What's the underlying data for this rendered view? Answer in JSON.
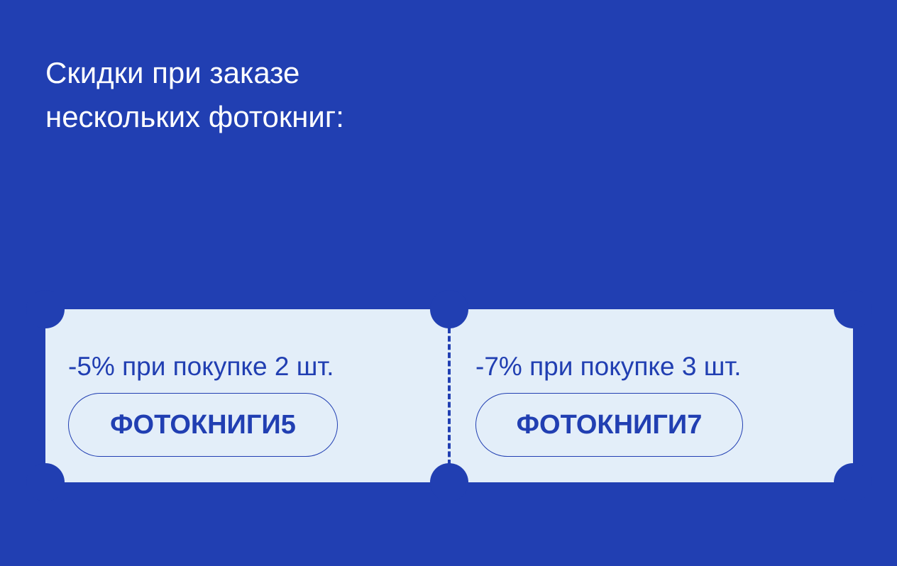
{
  "title_lines": [
    "Скидки при заказе",
    "нескольких фотокниг:"
  ],
  "coupons": [
    {
      "description": "-5% при покупке 2 шт.",
      "code": "ФОТОКНИГИ5"
    },
    {
      "description": "-7% при покупке 3 шт.",
      "code": "ФОТОКНИГИ7"
    }
  ],
  "colors": {
    "background": "#213fb2",
    "ticket": "#e3eef9",
    "text": "#213fb2"
  }
}
